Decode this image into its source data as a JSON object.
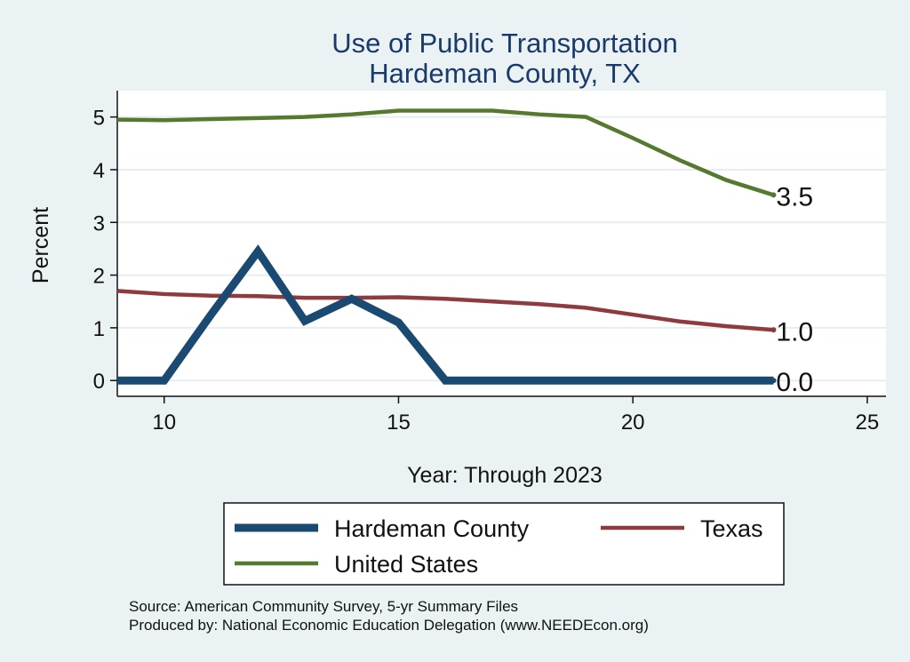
{
  "chart_data": {
    "type": "line",
    "title": [
      "Use of Public Transportation",
      "Hardeman County, TX"
    ],
    "xlabel": "Year: Through 2023",
    "ylabel": "Percent",
    "xlim": [
      9,
      25.4
    ],
    "ylim": [
      -0.3,
      5.5
    ],
    "xticks": [
      10,
      15,
      20,
      25
    ],
    "yticks": [
      0,
      1,
      2,
      3,
      4,
      5
    ],
    "grid": "horizontal",
    "legend_position": "bottom",
    "series": [
      {
        "name": "Hardeman County",
        "color": "#1a4a72",
        "width": "thick",
        "x": [
          9,
          10,
          11,
          12,
          13,
          14,
          15,
          16,
          17,
          18,
          19,
          20,
          21,
          22,
          23
        ],
        "y": [
          0,
          0,
          1.25,
          2.45,
          1.13,
          1.55,
          1.1,
          0,
          0,
          0,
          0,
          0,
          0,
          0,
          0
        ],
        "end_label": "0.0"
      },
      {
        "name": "Texas",
        "color": "#8f3a3e",
        "width": "medium",
        "x": [
          9,
          10,
          11,
          12,
          13,
          14,
          15,
          16,
          17,
          18,
          19,
          20,
          21,
          22,
          23
        ],
        "y": [
          1.7,
          1.64,
          1.61,
          1.6,
          1.57,
          1.57,
          1.58,
          1.55,
          1.5,
          1.45,
          1.38,
          1.25,
          1.12,
          1.03,
          0.96
        ],
        "end_label": "1.0"
      },
      {
        "name": "United States",
        "color": "#55792f",
        "width": "medium",
        "x": [
          9,
          10,
          11,
          12,
          13,
          14,
          15,
          16,
          17,
          18,
          19,
          20,
          21,
          22,
          23
        ],
        "y": [
          4.95,
          4.94,
          4.96,
          4.98,
          5.0,
          5.05,
          5.12,
          5.12,
          5.12,
          5.05,
          5.0,
          4.6,
          4.18,
          3.8,
          3.52
        ],
        "end_label": "3.5"
      }
    ],
    "notes": [
      "Source: American Community Survey, 5-yr Summary Files",
      "Produced by: National Economic Education Delegation (www.NEEDEcon.org)"
    ]
  }
}
